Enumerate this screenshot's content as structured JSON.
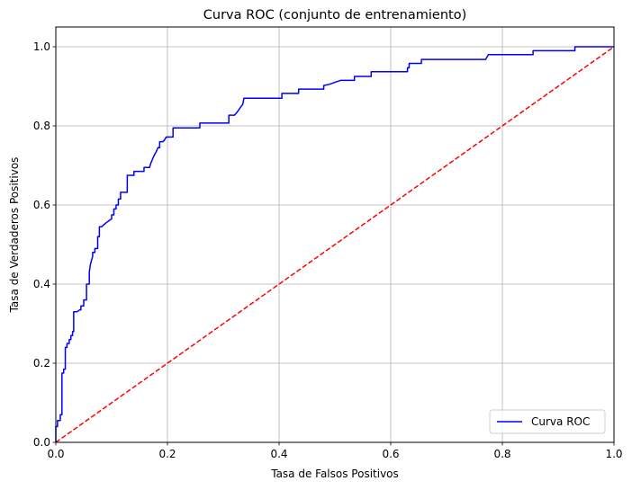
{
  "chart_data": {
    "type": "line",
    "title": "Curva ROC (conjunto de entrenamiento)",
    "xlabel": "Tasa de Falsos Positivos",
    "ylabel": "Tasa de Verdaderos Positivos",
    "xlim": [
      0.0,
      1.0
    ],
    "ylim": [
      0.0,
      1.05
    ],
    "xticks": [
      0.0,
      0.2,
      0.4,
      0.6,
      0.8,
      1.0
    ],
    "xtick_labels": [
      "0.0",
      "0.2",
      "0.4",
      "0.6",
      "0.8",
      "1.0"
    ],
    "yticks": [
      0.0,
      0.2,
      0.4,
      0.6,
      0.8,
      1.0
    ],
    "ytick_labels": [
      "0.0",
      "0.2",
      "0.4",
      "0.6",
      "0.8",
      "1.0"
    ],
    "grid": true,
    "legend_position": "lower-right",
    "series": [
      {
        "name": "Curva ROC",
        "color": "#0000ff",
        "style": "solid",
        "in_legend": true,
        "points": [
          [
            0.0,
            0.0
          ],
          [
            0.0,
            0.04
          ],
          [
            0.003,
            0.04
          ],
          [
            0.003,
            0.055
          ],
          [
            0.008,
            0.055
          ],
          [
            0.008,
            0.07
          ],
          [
            0.011,
            0.07
          ],
          [
            0.011,
            0.175
          ],
          [
            0.014,
            0.175
          ],
          [
            0.014,
            0.185
          ],
          [
            0.017,
            0.185
          ],
          [
            0.017,
            0.24
          ],
          [
            0.02,
            0.24
          ],
          [
            0.02,
            0.25
          ],
          [
            0.024,
            0.25
          ],
          [
            0.024,
            0.26
          ],
          [
            0.027,
            0.26
          ],
          [
            0.027,
            0.27
          ],
          [
            0.03,
            0.27
          ],
          [
            0.03,
            0.28
          ],
          [
            0.032,
            0.28
          ],
          [
            0.032,
            0.33
          ],
          [
            0.038,
            0.33
          ],
          [
            0.043,
            0.335
          ],
          [
            0.045,
            0.335
          ],
          [
            0.045,
            0.345
          ],
          [
            0.05,
            0.345
          ],
          [
            0.05,
            0.36
          ],
          [
            0.055,
            0.36
          ],
          [
            0.055,
            0.4
          ],
          [
            0.06,
            0.4
          ],
          [
            0.06,
            0.43
          ],
          [
            0.062,
            0.45
          ],
          [
            0.064,
            0.46
          ],
          [
            0.066,
            0.47
          ],
          [
            0.066,
            0.48
          ],
          [
            0.07,
            0.48
          ],
          [
            0.07,
            0.49
          ],
          [
            0.075,
            0.49
          ],
          [
            0.075,
            0.52
          ],
          [
            0.078,
            0.52
          ],
          [
            0.078,
            0.545
          ],
          [
            0.082,
            0.545
          ],
          [
            0.09,
            0.555
          ],
          [
            0.095,
            0.56
          ],
          [
            0.1,
            0.565
          ],
          [
            0.1,
            0.575
          ],
          [
            0.104,
            0.575
          ],
          [
            0.104,
            0.59
          ],
          [
            0.108,
            0.59
          ],
          [
            0.108,
            0.6
          ],
          [
            0.112,
            0.6
          ],
          [
            0.112,
            0.615
          ],
          [
            0.116,
            0.615
          ],
          [
            0.116,
            0.632
          ],
          [
            0.128,
            0.632
          ],
          [
            0.128,
            0.675
          ],
          [
            0.14,
            0.675
          ],
          [
            0.14,
            0.685
          ],
          [
            0.158,
            0.685
          ],
          [
            0.158,
            0.695
          ],
          [
            0.168,
            0.695
          ],
          [
            0.17,
            0.705
          ],
          [
            0.173,
            0.715
          ],
          [
            0.176,
            0.725
          ],
          [
            0.18,
            0.735
          ],
          [
            0.183,
            0.745
          ],
          [
            0.186,
            0.745
          ],
          [
            0.186,
            0.76
          ],
          [
            0.192,
            0.76
          ],
          [
            0.195,
            0.765
          ],
          [
            0.198,
            0.772
          ],
          [
            0.21,
            0.772
          ],
          [
            0.21,
            0.795
          ],
          [
            0.258,
            0.795
          ],
          [
            0.258,
            0.807
          ],
          [
            0.31,
            0.807
          ],
          [
            0.31,
            0.827
          ],
          [
            0.32,
            0.827
          ],
          [
            0.325,
            0.835
          ],
          [
            0.33,
            0.845
          ],
          [
            0.335,
            0.855
          ],
          [
            0.337,
            0.87
          ],
          [
            0.405,
            0.87
          ],
          [
            0.405,
            0.882
          ],
          [
            0.435,
            0.882
          ],
          [
            0.435,
            0.893
          ],
          [
            0.48,
            0.893
          ],
          [
            0.48,
            0.902
          ],
          [
            0.49,
            0.905
          ],
          [
            0.5,
            0.91
          ],
          [
            0.51,
            0.915
          ],
          [
            0.535,
            0.915
          ],
          [
            0.535,
            0.925
          ],
          [
            0.565,
            0.925
          ],
          [
            0.565,
            0.937
          ],
          [
            0.63,
            0.937
          ],
          [
            0.63,
            0.947
          ],
          [
            0.633,
            0.947
          ],
          [
            0.633,
            0.958
          ],
          [
            0.655,
            0.958
          ],
          [
            0.655,
            0.968
          ],
          [
            0.77,
            0.968
          ],
          [
            0.775,
            0.98
          ],
          [
            0.855,
            0.98
          ],
          [
            0.855,
            0.99
          ],
          [
            0.93,
            0.99
          ],
          [
            0.93,
            1.0
          ],
          [
            1.0,
            1.0
          ]
        ]
      },
      {
        "name": "",
        "color": "#ff0000",
        "style": "dashed",
        "in_legend": false,
        "points": [
          [
            0.0,
            0.0
          ],
          [
            1.0,
            1.0
          ]
        ]
      }
    ]
  }
}
